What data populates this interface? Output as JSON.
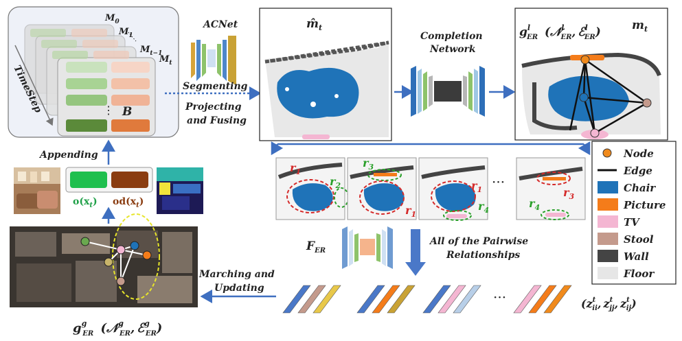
{
  "timestep": {
    "m0": "M",
    "m0_sub": "0",
    "m1": "M",
    "m1_sub": "1",
    "mt1": "M",
    "mt1_sub": "t−1",
    "mt": "M",
    "mt_sub": "t",
    "axis_label": "TimeStep",
    "b_label": "B",
    "dots": "⋮"
  },
  "acnet": {
    "title": "ACNet"
  },
  "steps": {
    "segmenting": "Segmenting",
    "projecting_line1": "Projecting",
    "projecting_line2": "and Fusing",
    "appending": "Appending",
    "marching_line1": "Marching and",
    "marching_line2": "Updating",
    "pairwise_line1": "All of the Pairwise",
    "pairwise_line2": "Relationships"
  },
  "maps": {
    "mhat": "m̂",
    "mhat_sub": "t",
    "mt": "m",
    "mt_sub": "t"
  },
  "completion": {
    "line1": "Completion",
    "line2": "Network"
  },
  "graph_local": {
    "g": "g",
    "g_sup": "l",
    "g_sub": "ER",
    "n": "𝒩",
    "n_sup": "l",
    "n_sub": "ER",
    "e": "ℰ",
    "e_sup": "l",
    "e_sub": "ER"
  },
  "features": {
    "o_label": "o(x",
    "o_sub": "t",
    "o_close": ")",
    "od_label": "od(x",
    "od_sub": "t",
    "od_close": ")"
  },
  "pairs": {
    "r1": "r",
    "r1_sub": "1",
    "r2": "r",
    "r2_sub": "2",
    "r3": "r",
    "r3_sub": "3",
    "r4": "r",
    "r4_sub": "4",
    "dots": "···"
  },
  "fer": {
    "f": "F",
    "f_sub": "ER"
  },
  "z": {
    "open": "(",
    "z1": "z",
    "z1_sup": "t",
    "z1_sub": "ii",
    "z2": "z",
    "z2_sup": "t",
    "z2_sub": "jj",
    "z3": "z",
    "z3_sup": "t",
    "z3_sub": "ij",
    "close": ")",
    "dots": "···"
  },
  "graph_global": {
    "g": "g",
    "g_sup": "g",
    "g_sub": "ER",
    "n": "𝒩",
    "n_sup": "g",
    "n_sub": "ER",
    "e": "ℰ",
    "e_sup": "g",
    "e_sub": "ER"
  },
  "legend": {
    "items": [
      {
        "label": "Node",
        "kind": "node",
        "color": "#f08a1c"
      },
      {
        "label": "Edge",
        "kind": "edge",
        "color": "#111111"
      },
      {
        "label": "Chair",
        "kind": "swatch",
        "color": "#1f73b8"
      },
      {
        "label": "Picture",
        "kind": "swatch",
        "color": "#f47c1a"
      },
      {
        "label": "TV",
        "kind": "swatch",
        "color": "#f4b6d2"
      },
      {
        "label": "Stool",
        "kind": "swatch",
        "color": "#c49a8c"
      },
      {
        "label": "Wall",
        "kind": "swatch",
        "color": "#444444"
      },
      {
        "label": "Floor",
        "kind": "swatch",
        "color": "#e6e6e6"
      }
    ]
  },
  "colors": {
    "arrow": "#3e6fc0",
    "chair": "#1f73b8",
    "picture": "#f47c1a",
    "tv": "#f4b6d2",
    "stool": "#c49a8c",
    "wall": "#444444",
    "floor": "#e6e6e6"
  }
}
